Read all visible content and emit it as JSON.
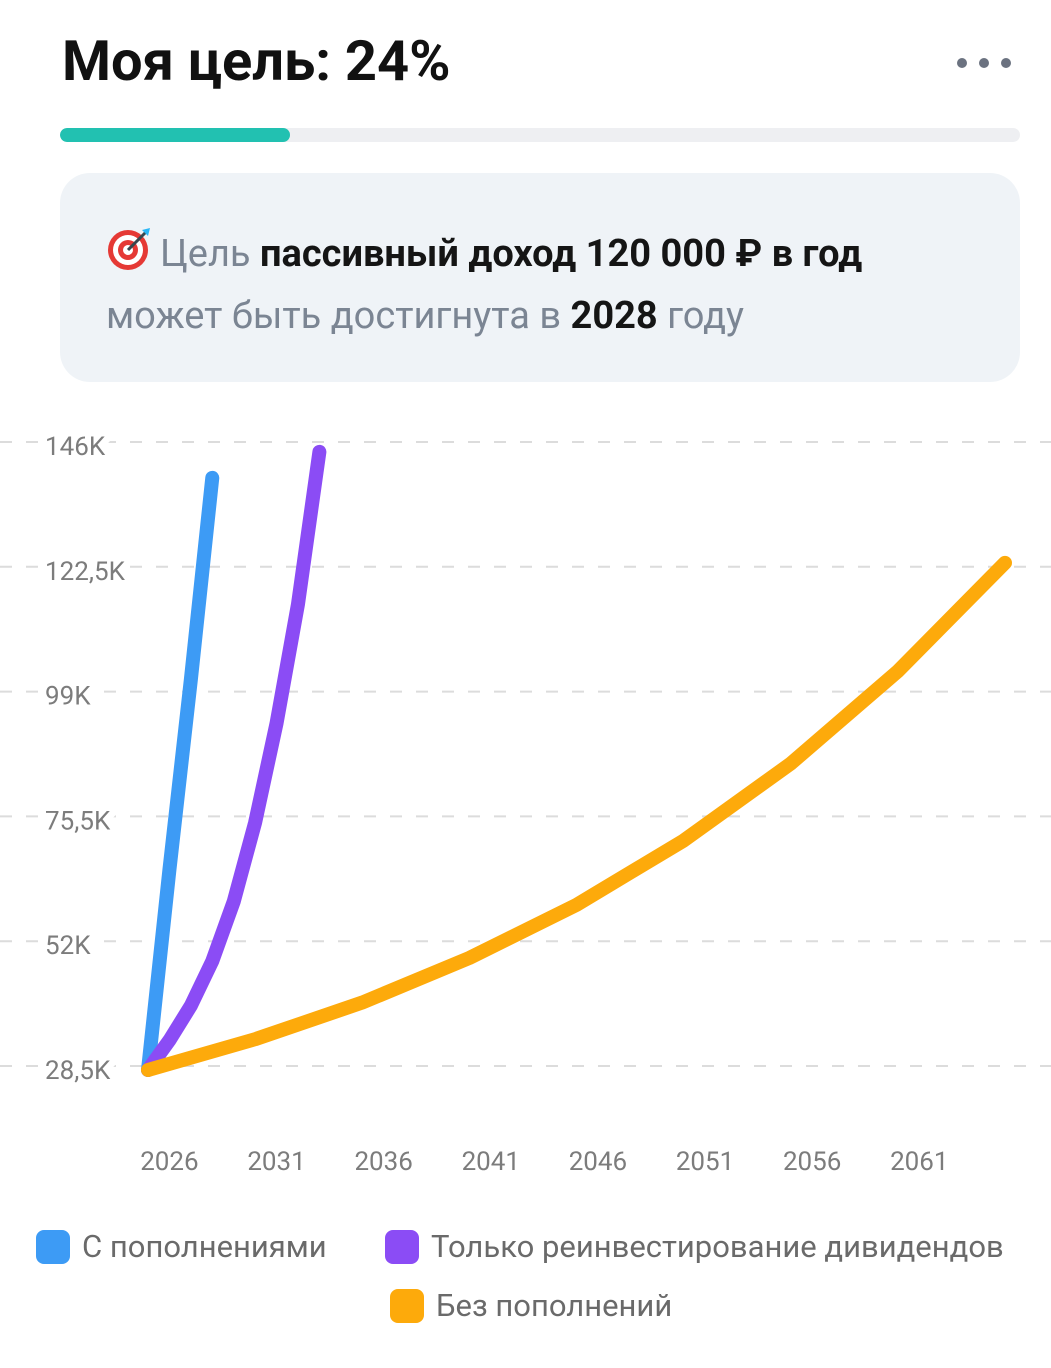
{
  "header": {
    "title": "Моя цель: 24%",
    "progress": 24
  },
  "goal": {
    "text_parts": [
      "Цель",
      "пассивный доход 120 000 ₽ в год",
      "может быть достигнута в",
      "2028",
      "году"
    ]
  },
  "chart_data": {
    "type": "line",
    "xlim": [
      2025,
      2065
    ],
    "xticks": [
      2026,
      2031,
      2036,
      2041,
      2046,
      2051,
      2056,
      2061
    ],
    "ylim": [
      28500,
      146000
    ],
    "yticks": [
      {
        "value": 28500,
        "label": "28,5K"
      },
      {
        "value": 52000,
        "label": "52K"
      },
      {
        "value": 75500,
        "label": "75,5K"
      },
      {
        "value": 99000,
        "label": "99K"
      },
      {
        "value": 122500,
        "label": "122,5K"
      },
      {
        "value": 146000,
        "label": "146K"
      }
    ],
    "grid": true,
    "series": [
      {
        "name": "С пополнениями",
        "color": "#3d9bf5",
        "x": [
          2025,
          2026,
          2027,
          2028
        ],
        "values": [
          28500,
          66200,
          102000,
          140000
        ]
      },
      {
        "name": "Только реинвестирование дивидендов",
        "color": "#8b4cf5",
        "x": [
          2025,
          2026,
          2027,
          2028,
          2029,
          2030,
          2031,
          2032,
          2033
        ],
        "values": [
          28500,
          34100,
          40600,
          49000,
          60200,
          75100,
          93800,
          116200,
          144900
        ]
      },
      {
        "name": "Без пополнений",
        "color": "#fdaa0b",
        "x": [
          2025,
          2030,
          2035,
          2040,
          2045,
          2050,
          2055,
          2060,
          2065
        ],
        "values": [
          28500,
          34300,
          41200,
          49600,
          59600,
          71700,
          86200,
          103600,
          124000
        ]
      }
    ]
  }
}
